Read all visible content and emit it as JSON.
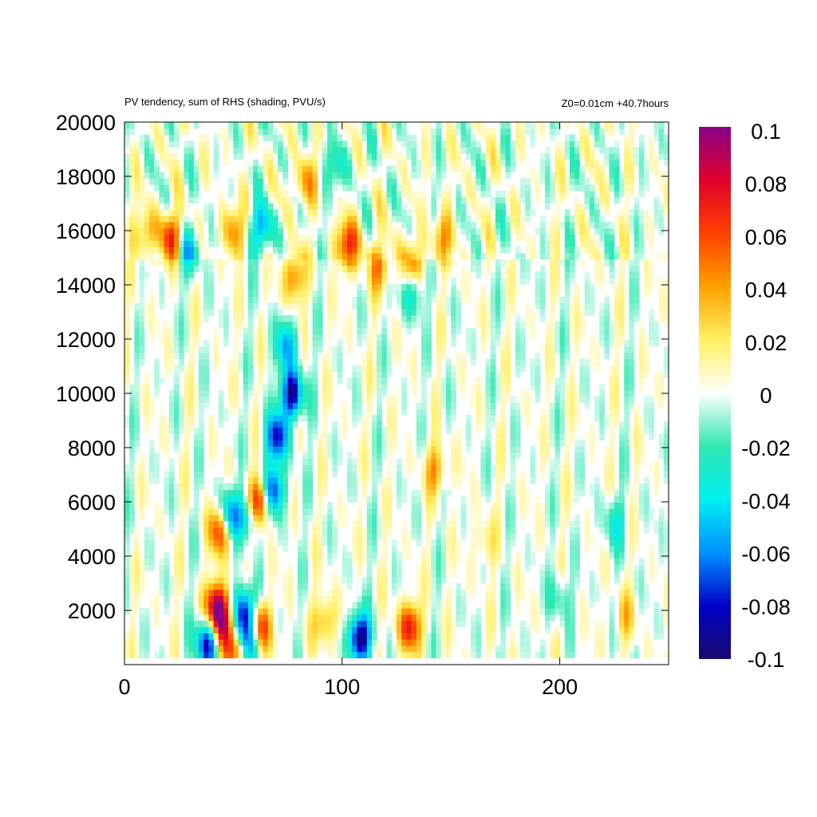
{
  "header": {
    "title": "PV tendency, sum of RHS (shading, PVU/s)",
    "info": "Z0=0.01cm   +40.7hours"
  },
  "chart_data": {
    "type": "heatmap",
    "title": "PV tendency, sum of RHS (shading, PVU/s)",
    "xlabel": "",
    "ylabel": "",
    "xlim": [
      0,
      250
    ],
    "ylim": [
      250,
      20000
    ],
    "x_ticks": [
      0,
      100,
      200
    ],
    "y_ticks": [
      2000,
      4000,
      6000,
      8000,
      10000,
      12000,
      14000,
      16000,
      18000,
      20000
    ],
    "grid": false,
    "colorbar": {
      "range": [
        -0.1,
        0.1
      ],
      "ticks": [
        0.1,
        0.08,
        0.06,
        0.04,
        0.02,
        0,
        -0.02,
        -0.04,
        -0.06,
        -0.08,
        -0.1
      ],
      "tick_labels": [
        "0.1",
        "0.08",
        "0.06",
        "0.04",
        "0.02",
        "0",
        "-0.02",
        "-0.04",
        "-0.06",
        "-0.08",
        "-0.1"
      ],
      "stops": [
        "#1a0a6e",
        "#0000c8",
        "#0090ff",
        "#00f0f0",
        "#30e8b0",
        "#ffffff",
        "#fff060",
        "#ffa000",
        "#ff4000",
        "#e0002a",
        "#880088"
      ]
    },
    "features": [
      {
        "x": 22,
        "y": 15800,
        "value": 0.065
      },
      {
        "x": 10,
        "y": 15900,
        "value": 0.04
      },
      {
        "x": 30,
        "y": 15300,
        "value": -0.045
      },
      {
        "x": 50,
        "y": 16000,
        "value": 0.045
      },
      {
        "x": 63,
        "y": 16100,
        "value": -0.055
      },
      {
        "x": 103,
        "y": 15500,
        "value": 0.07
      },
      {
        "x": 117,
        "y": 14700,
        "value": 0.045
      },
      {
        "x": 132,
        "y": 14700,
        "value": 0.05
      },
      {
        "x": 132,
        "y": 13800,
        "value": -0.045
      },
      {
        "x": 83,
        "y": 17800,
        "value": 0.04
      },
      {
        "x": 98,
        "y": 18400,
        "value": -0.03
      },
      {
        "x": 146,
        "y": 15700,
        "value": 0.04
      },
      {
        "x": 78,
        "y": 14300,
        "value": 0.05
      },
      {
        "x": 77,
        "y": 10000,
        "value": -0.095
      },
      {
        "x": 74,
        "y": 11800,
        "value": -0.05
      },
      {
        "x": 70,
        "y": 8400,
        "value": -0.08
      },
      {
        "x": 62,
        "y": 6000,
        "value": 0.095
      },
      {
        "x": 68,
        "y": 6400,
        "value": -0.085
      },
      {
        "x": 57,
        "y": 5500,
        "value": -0.05
      },
      {
        "x": 44,
        "y": 5000,
        "value": 0.075
      },
      {
        "x": 48,
        "y": 5500,
        "value": -0.07
      },
      {
        "x": 42,
        "y": 2200,
        "value": 0.08
      },
      {
        "x": 38,
        "y": 800,
        "value": -0.09
      },
      {
        "x": 45,
        "y": 1600,
        "value": 0.07
      },
      {
        "x": 55,
        "y": 2000,
        "value": -0.085
      },
      {
        "x": 62,
        "y": 1400,
        "value": 0.08
      },
      {
        "x": 57,
        "y": 1000,
        "value": -0.07
      },
      {
        "x": 49,
        "y": 600,
        "value": 0.06
      },
      {
        "x": 108,
        "y": 1000,
        "value": -0.1
      },
      {
        "x": 131,
        "y": 1400,
        "value": 0.075
      },
      {
        "x": 92,
        "y": 1600,
        "value": 0.04
      },
      {
        "x": 143,
        "y": 7200,
        "value": 0.04
      },
      {
        "x": 225,
        "y": 5200,
        "value": -0.03
      },
      {
        "x": 200,
        "y": 2500,
        "value": -0.025
      },
      {
        "x": 165,
        "y": 4500,
        "value": 0.02
      },
      {
        "x": 230,
        "y": 1800,
        "value": 0.025
      }
    ]
  }
}
